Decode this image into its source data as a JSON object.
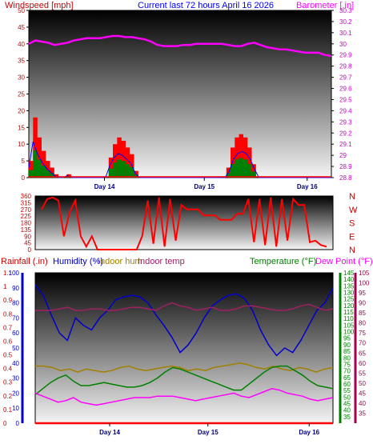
{
  "header": {
    "left": "Windspeed [mph]",
    "center": "Current last 72 hours April 16 2026",
    "right": "Barometer [.in]"
  },
  "colors": {
    "wind": "#ff0000",
    "gust_band": "#ff0000",
    "avg_wind": "#0000ff",
    "min_wind": "#008000",
    "barometer": "#ff00ff",
    "direction": "#ff0000",
    "rainfall": "#ff0000",
    "humidity": "#0000cc",
    "indoor_hum": "#a08000",
    "indoor_temp": "#a02060",
    "temperature": "#008000",
    "dew_point": "#ff00ff",
    "temp_axis": "#008000",
    "dew_axis": "#a00050"
  },
  "chart_data": [
    {
      "type": "area",
      "name": "wind_barometer",
      "left_axis": {
        "label": "Windspeed [mph]",
        "ylim": [
          0,
          50
        ],
        "ticks": [
          "0",
          "5",
          "10",
          "15",
          "20",
          "25",
          "30",
          "35",
          "40",
          "45",
          "50"
        ]
      },
      "right_axis": {
        "label": "Barometer [.in]",
        "ylim": [
          28.8,
          30.3
        ],
        "ticks": [
          "28.8",
          "28.9",
          "29",
          "29.1",
          "29.2",
          "29.3",
          "29.4",
          "29.5",
          "29.6",
          "29.7",
          "29.8",
          "29.9",
          "30",
          "30.1",
          "30.2",
          "30.3"
        ]
      },
      "x": {
        "range_hours": [
          0,
          72
        ],
        "day_labels": [
          "Day 14",
          "Day 15",
          "Day 16"
        ]
      },
      "series": [
        {
          "name": "Windspeed [mph]",
          "values": [
            5,
            18,
            12,
            8,
            5,
            3,
            1,
            0,
            0,
            1,
            0,
            0,
            0,
            0,
            0,
            0,
            0,
            0,
            0,
            6,
            10,
            12,
            11,
            9,
            7,
            2,
            0,
            0,
            0,
            0,
            0,
            0,
            0,
            0,
            0,
            0,
            0,
            0,
            0,
            0,
            0,
            0,
            0,
            0,
            0,
            0,
            0,
            3,
            9,
            12,
            13,
            12,
            9,
            4,
            0,
            0,
            0,
            0,
            0,
            0,
            0,
            0,
            0,
            0,
            0,
            0,
            0,
            0,
            0,
            0,
            0,
            0
          ]
        },
        {
          "name": "Barometer [.in]",
          "values": [
            30.0,
            30.03,
            30.02,
            30.01,
            29.99,
            30.0,
            30.01,
            30.03,
            30.04,
            30.05,
            30.05,
            30.05,
            30.06,
            30.07,
            30.07,
            30.06,
            30.06,
            30.05,
            30.04,
            30.02,
            29.99,
            29.98,
            29.98,
            29.98,
            29.99,
            29.99,
            30.0,
            30.0,
            30.0,
            30.0,
            30.0,
            29.99,
            29.98,
            29.98,
            30.0,
            30.01,
            29.99,
            29.97,
            29.96,
            29.95,
            29.95,
            29.94,
            29.93,
            29.92,
            29.92,
            29.92,
            29.9,
            29.89
          ]
        }
      ]
    },
    {
      "type": "line",
      "name": "wind_direction",
      "left_axis": {
        "ylim": [
          0,
          360
        ],
        "ticks": [
          "0",
          "45",
          "90",
          "135",
          "180",
          "225",
          "270",
          "315",
          "360"
        ]
      },
      "right_labels": [
        "N",
        "W",
        "S",
        "E",
        "N"
      ],
      "series": [
        {
          "name": "Wind direction",
          "values": [
            270,
            340,
            350,
            330,
            90,
            250,
            330,
            90,
            20,
            90,
            0,
            0,
            0,
            0,
            0,
            0,
            0,
            0,
            90,
            330,
            40,
            350,
            20,
            340,
            60,
            300,
            270,
            270,
            270,
            230,
            230,
            230,
            200,
            200,
            200,
            240,
            240,
            340,
            50,
            340,
            30,
            350,
            20,
            340,
            60,
            340,
            300,
            300,
            50,
            60,
            30,
            20
          ]
        }
      ]
    },
    {
      "type": "line",
      "name": "temperature_humidity",
      "left_axis": {
        "label": "Humidity (%)",
        "ylim": [
          0,
          100
        ],
        "ticks": [
          "0",
          "10",
          "20",
          "30",
          "40",
          "50",
          "60",
          "70",
          "80",
          "90",
          "100"
        ]
      },
      "rain_axis": {
        "label": "Rainfall (.in)",
        "ylim": [
          0,
          1.1
        ],
        "ticks": [
          "0",
          "0.1",
          "0.2",
          "0.3",
          "0.4",
          "0.5",
          "0.6",
          "0.7",
          "0.8",
          "0.9",
          "1",
          "1.1"
        ]
      },
      "temp_axis": {
        "label": "Temperature (°F)",
        "ylim": [
          30,
          145
        ],
        "ticks": [
          "35",
          "40",
          "45",
          "50",
          "55",
          "60",
          "65",
          "70",
          "75",
          "80",
          "85",
          "90",
          "95",
          "100",
          "105",
          "110",
          "115",
          "120",
          "125",
          "130",
          "135",
          "140",
          "145"
        ]
      },
      "dew_axis": {
        "label": "Dew Point (°F)",
        "ylim": [
          30,
          105
        ],
        "ticks": [
          "35",
          "40",
          "45",
          "50",
          "55",
          "60",
          "65",
          "70",
          "75",
          "80",
          "85",
          "90",
          "95",
          "100",
          "105"
        ]
      },
      "legend": [
        "Rainfall (.in)",
        "Humidity (%)",
        "Indoor hum",
        "Indoor temp",
        "Temperature (°F)",
        "Dew Point (°F)"
      ],
      "series": [
        {
          "name": "Humidity (%)",
          "values": [
            92,
            85,
            72,
            60,
            55,
            70,
            65,
            62,
            70,
            75,
            82,
            84,
            85,
            84,
            80,
            72,
            65,
            57,
            47,
            52,
            60,
            70,
            78,
            82,
            85,
            86,
            83,
            75,
            62,
            52,
            45,
            50,
            47,
            55,
            65,
            75,
            80,
            90
          ]
        },
        {
          "name": "Indoor hum",
          "values": [
            38,
            38,
            37,
            35,
            36,
            34,
            36,
            35,
            34,
            35,
            37,
            38,
            36,
            35,
            36,
            37,
            38,
            37,
            35,
            36,
            35,
            37,
            38,
            39,
            40,
            39,
            37,
            36,
            38,
            36,
            35,
            37,
            36,
            34,
            36,
            37
          ]
        },
        {
          "name": "Indoor temp",
          "values": [
            75,
            75,
            75,
            76,
            77,
            75,
            75,
            76,
            76,
            75,
            75,
            76,
            77,
            77,
            76,
            75,
            78,
            80,
            78,
            77,
            75,
            76,
            77,
            75,
            75,
            76,
            78,
            78,
            77,
            76,
            75,
            75,
            76,
            78,
            79,
            77,
            75,
            76
          ]
        },
        {
          "name": "Temperature (°F)",
          "values": [
            19,
            23,
            27,
            30,
            32,
            28,
            25,
            25,
            26,
            27,
            26,
            25,
            24,
            24,
            25,
            27,
            30,
            34,
            37,
            36,
            34,
            32,
            30,
            28,
            26,
            24,
            22,
            22,
            26,
            30,
            34,
            37,
            38,
            38,
            35,
            32,
            28,
            25,
            24,
            23
          ]
        },
        {
          "name": "Dew Point (°F)",
          "values": [
            20,
            18,
            16,
            14,
            15,
            17,
            14,
            13,
            12,
            13,
            14,
            15,
            16,
            17,
            17,
            17,
            18,
            18,
            18,
            17,
            16,
            15,
            16,
            17,
            18,
            19,
            20,
            18,
            17,
            19,
            21,
            23,
            22,
            20,
            19,
            18,
            16,
            15,
            16,
            17
          ]
        },
        {
          "name": "Rainfall (.in)",
          "values": [
            0,
            0,
            0,
            0,
            0,
            0,
            0,
            0,
            0,
            0
          ]
        }
      ]
    }
  ]
}
